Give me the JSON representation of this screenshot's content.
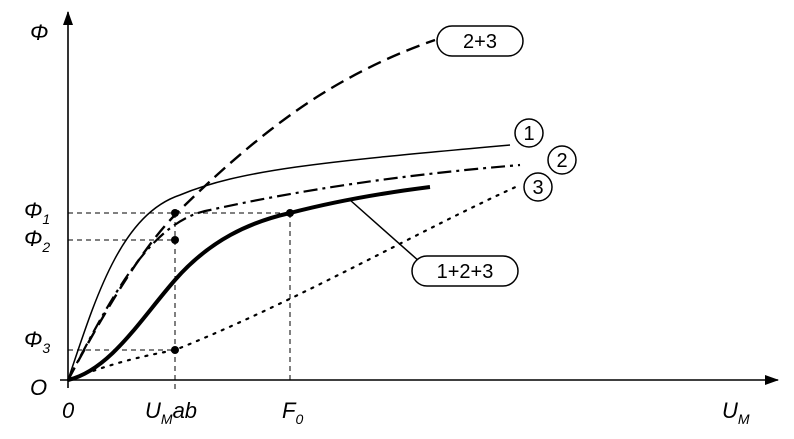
{
  "axes": {
    "y_label": {
      "main": "Φ"
    },
    "x_label": {
      "main": "U",
      "sub": "M"
    },
    "origin_corner": "O",
    "origin_tick": "0",
    "x_marks": [
      {
        "main": "U",
        "sub": "M",
        "suffix": "ab"
      },
      {
        "main": "F",
        "sub": "0"
      }
    ],
    "y_marks": [
      {
        "main": "Φ",
        "sub": "1"
      },
      {
        "main": "Φ",
        "sub": "2"
      },
      {
        "main": "Φ",
        "sub": "3"
      }
    ]
  },
  "curves": [
    {
      "label": "1"
    },
    {
      "label": "2"
    },
    {
      "label": "3"
    },
    {
      "label": "1+2+3"
    },
    {
      "label": "2+3"
    }
  ]
}
